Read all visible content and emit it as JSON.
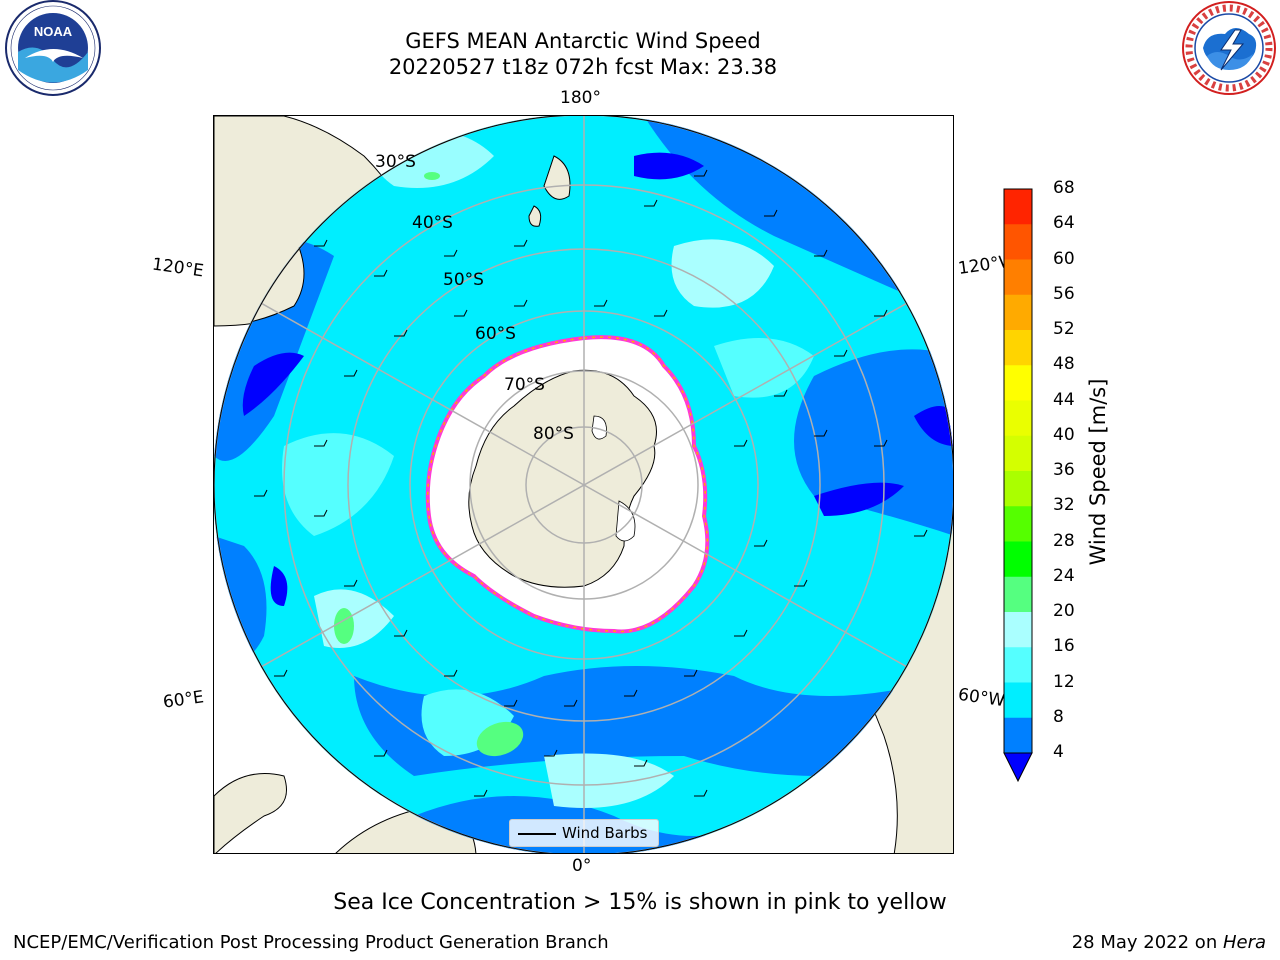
{
  "header": {
    "title_line1": "GEFS MEAN Antarctic Wind Speed",
    "title_line2": "20220527 t18z 072h fcst   Max: 23.38"
  },
  "logos": {
    "left": "noaa-logo",
    "right": "national-weather-service-logo"
  },
  "map": {
    "projection": "south-polar-stereographic",
    "longitude_labels": {
      "top": "180°",
      "bottom": "0°",
      "left_upper": "120°E",
      "left_lower": "60°E",
      "right_upper": "120°W",
      "right_lower": "60°W"
    },
    "latitude_labels": [
      "30°S",
      "40°S",
      "50°S",
      "60°S",
      "70°S",
      "80°S"
    ],
    "legend_label": "Wind Barbs"
  },
  "colorbar": {
    "title": "Wind Speed [m/s]",
    "ticks": [
      "68",
      "64",
      "60",
      "56",
      "52",
      "48",
      "44",
      "40",
      "36",
      "32",
      "28",
      "24",
      "20",
      "16",
      "12",
      "8",
      "4"
    ],
    "colors": [
      "#ff0000",
      "#ff2400",
      "#ff5500",
      "#ff7f00",
      "#ffaa00",
      "#ffd400",
      "#ffff00",
      "#eaff00",
      "#d4ff00",
      "#aaff00",
      "#55ff00",
      "#00ff00",
      "#55ff80",
      "#aaffff",
      "#55ffff",
      "#00eeff",
      "#0080ff",
      "#0000ff"
    ]
  },
  "caption": "Sea Ice Concentration > 15% is shown in pink to yellow",
  "footer": {
    "left": "NCEP/EMC/Verification Post Processing Product Generation Branch",
    "right_prefix": "28 May 2022 on ",
    "right_machine": "Hera"
  }
}
